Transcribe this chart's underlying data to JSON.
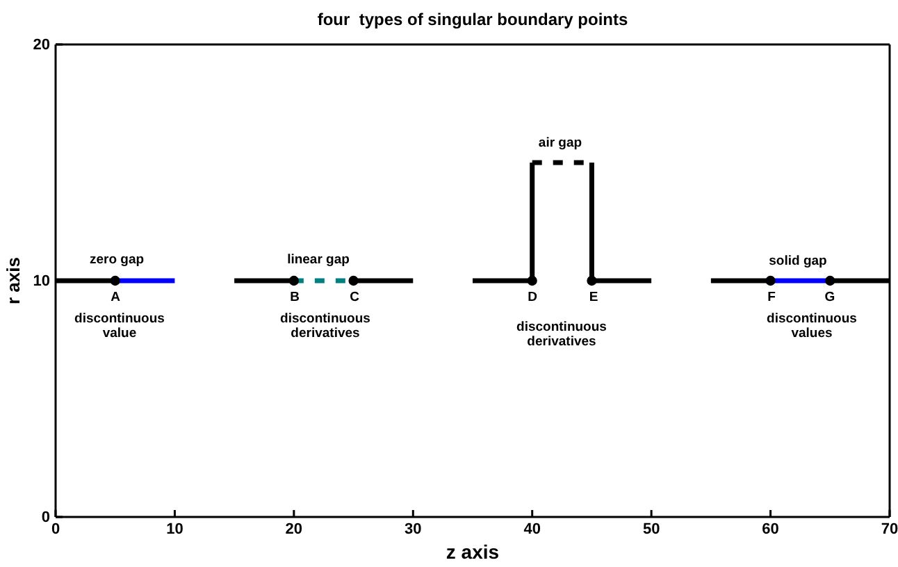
{
  "chart_data": {
    "type": "line",
    "title": "four  types of singular boundary points",
    "xlabel": "z axis",
    "ylabel": "r axis",
    "xlim": [
      0,
      70
    ],
    "xticks": [
      0,
      10,
      20,
      30,
      40,
      50,
      60,
      70
    ],
    "ylim": [
      0,
      20
    ],
    "yticks": [
      0,
      10,
      20
    ],
    "grid": false,
    "series": [
      {
        "color": "#000000",
        "x": [
          0,
          5
        ],
        "values": [
          10,
          10
        ],
        "line_style": "solid"
      },
      {
        "color": "#0000ff",
        "x": [
          5,
          10
        ],
        "values": [
          10,
          10
        ],
        "line_style": "solid"
      },
      {
        "color": "#000000",
        "x": [
          15,
          20
        ],
        "values": [
          10,
          10
        ],
        "line_style": "solid"
      },
      {
        "color": "#008080",
        "x": [
          20,
          25
        ],
        "values": [
          10,
          10
        ],
        "line_style": "dashed"
      },
      {
        "color": "#000000",
        "x": [
          25,
          30
        ],
        "values": [
          10,
          10
        ],
        "line_style": "solid"
      },
      {
        "color": "#000000",
        "x": [
          35,
          40,
          40
        ],
        "values": [
          10,
          10,
          15
        ],
        "line_style": "solid"
      },
      {
        "color": "#000000",
        "x": [
          40,
          45
        ],
        "values": [
          15,
          15
        ],
        "line_style": "dashed"
      },
      {
        "color": "#000000",
        "x": [
          45,
          45,
          50
        ],
        "values": [
          15,
          10,
          10
        ],
        "line_style": "solid"
      },
      {
        "color": "#000000",
        "x": [
          55,
          60
        ],
        "values": [
          10,
          10
        ],
        "line_style": "solid"
      },
      {
        "color": "#0000ff",
        "x": [
          60,
          65
        ],
        "values": [
          10,
          10
        ],
        "line_style": "solid"
      },
      {
        "color": "#000000",
        "x": [
          65,
          70
        ],
        "values": [
          10,
          10
        ],
        "line_style": "solid"
      },
      {
        "type": "scatter",
        "marker": "circle",
        "color": "#000000",
        "x": [
          5,
          20,
          25,
          40,
          45,
          60,
          65
        ],
        "values": [
          10,
          10,
          10,
          10,
          10,
          10,
          10
        ]
      }
    ],
    "annotations": [
      "zero gap",
      "A",
      "discontinuous\nvalue",
      "linear gap",
      "B",
      "C",
      "discontinuous\nderivatives",
      "air gap",
      "D",
      "E",
      "discontinuous\nderivatives",
      "solid gap",
      "F",
      "G",
      "discontinuous\nvalues"
    ]
  }
}
